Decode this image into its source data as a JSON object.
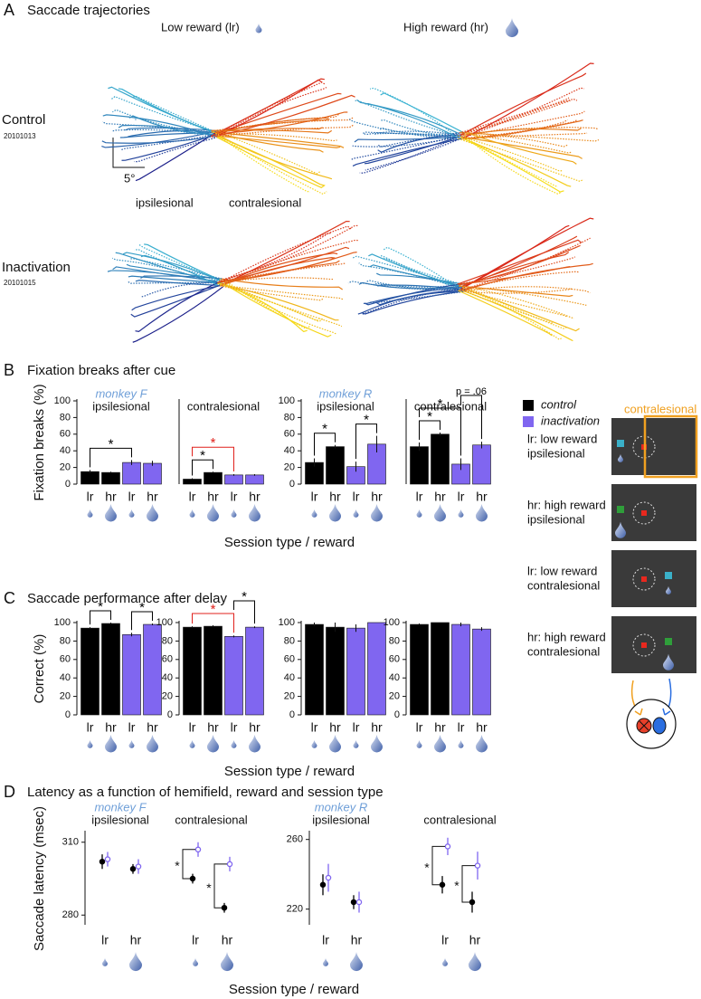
{
  "panel_a": {
    "letter": "A",
    "title": "Saccade trajectories",
    "columns": [
      "Low reward (lr)",
      "High reward (hr)"
    ],
    "rows": [
      {
        "label": "Control",
        "session": "20101013"
      },
      {
        "label": "Inactivation",
        "session": "20101015"
      }
    ],
    "scale": "5°",
    "hemifields": [
      "ipsilesional",
      "contralesional"
    ]
  },
  "panel_b": {
    "letter": "B",
    "title": "Fixation breaks after cue",
    "x_label": "Session type / reward"
  },
  "panel_c": {
    "letter": "C",
    "title": "Saccade performance after delay",
    "x_label": "Session type / reward"
  },
  "panel_d": {
    "letter": "D",
    "title": "Latency as a function of hemifield, reward and session type",
    "x_label": "Session type / reward"
  },
  "legend": [
    {
      "name": "control",
      "color": "#000000"
    },
    {
      "name": "inactivation",
      "color": "#8066f0"
    }
  ],
  "task_schematic": {
    "label": "contralesional",
    "conditions": [
      [
        "lr: low reward",
        "ipsilesional"
      ],
      [
        "hr: high reward",
        "ipsilesional"
      ],
      [
        "lr: low reward",
        "contralesional"
      ],
      [
        "hr: high reward",
        "contralesional"
      ]
    ]
  },
  "chart_data": [
    {
      "type": "bar",
      "subtitle": "monkey F",
      "hemifield": "ipsilesional",
      "y_label": "Fixation breaks (%)",
      "categories": [
        "lr",
        "hr",
        "lr",
        "hr"
      ],
      "values": [
        15,
        14,
        26,
        25
      ],
      "errors": [
        2,
        1,
        3,
        3
      ],
      "colors": [
        "#000000",
        "#000000",
        "#8066f0",
        "#8066f0"
      ],
      "ylim": [
        0,
        100
      ],
      "yticks": [
        0,
        20,
        40,
        60,
        80,
        100
      ],
      "annotations": [
        {
          "text": "*",
          "pair": [
            0,
            2
          ],
          "color": "#000000"
        }
      ]
    },
    {
      "type": "bar",
      "hemifield": "contralesional",
      "categories": [
        "lr",
        "hr",
        "lr",
        "hr"
      ],
      "values": [
        6,
        14,
        11,
        11
      ],
      "errors": [
        1,
        1,
        1,
        1
      ],
      "colors": [
        "#000000",
        "#000000",
        "#8066f0",
        "#8066f0"
      ],
      "ylim": [
        0,
        100
      ],
      "annotations": [
        {
          "text": "*",
          "pair": [
            0,
            1
          ],
          "color": "#000000"
        },
        {
          "text": "*",
          "pair": [
            0,
            2
          ],
          "color": "#e0201b"
        }
      ]
    },
    {
      "type": "bar",
      "subtitle": "monkey R",
      "hemifield": "ipsilesional",
      "categories": [
        "lr",
        "hr",
        "lr",
        "hr"
      ],
      "values": [
        26,
        45,
        21,
        48
      ],
      "errors": [
        5,
        2,
        6,
        10
      ],
      "colors": [
        "#000000",
        "#000000",
        "#8066f0",
        "#8066f0"
      ],
      "ylim": [
        0,
        100
      ],
      "yticks": [
        0,
        20,
        40,
        60,
        80,
        100
      ],
      "annotations": [
        {
          "text": "*",
          "pair": [
            0,
            1
          ],
          "color": "#000000"
        },
        {
          "text": "*",
          "pair": [
            2,
            3
          ],
          "color": "#000000"
        }
      ]
    },
    {
      "type": "bar",
      "hemifield": "contralesional",
      "categories": [
        "lr",
        "hr",
        "lr",
        "hr"
      ],
      "values": [
        45,
        60,
        24,
        47
      ],
      "errors": [
        5,
        2,
        7,
        4
      ],
      "colors": [
        "#000000",
        "#000000",
        "#8066f0",
        "#8066f0"
      ],
      "ylim": [
        0,
        100
      ],
      "annotations": [
        {
          "text": "*",
          "pair": [
            0,
            1
          ],
          "color": "#000000"
        },
        {
          "text": "*",
          "pair": [
            0,
            2
          ],
          "color": "#000000"
        },
        {
          "text": "p = .06",
          "pair": [
            2,
            3
          ],
          "color": "#000000"
        }
      ]
    },
    {
      "type": "bar",
      "y_label": "Correct (%)",
      "categories": [
        "lr",
        "hr",
        "lr",
        "hr"
      ],
      "values": [
        94,
        99,
        87,
        98
      ],
      "errors": [
        1,
        1,
        2,
        1
      ],
      "colors": [
        "#000000",
        "#000000",
        "#8066f0",
        "#8066f0"
      ],
      "ylim": [
        0,
        100
      ],
      "yticks": [
        0,
        20,
        40,
        60,
        80,
        100
      ],
      "annotations": [
        {
          "text": "*",
          "pair": [
            0,
            1
          ],
          "color": "#000000"
        },
        {
          "text": "*",
          "pair": [
            2,
            3
          ],
          "color": "#000000"
        }
      ]
    },
    {
      "type": "bar",
      "categories": [
        "lr",
        "hr",
        "lr",
        "hr"
      ],
      "values": [
        95,
        96,
        85,
        95
      ],
      "errors": [
        1,
        1,
        1,
        1
      ],
      "colors": [
        "#000000",
        "#000000",
        "#8066f0",
        "#8066f0"
      ],
      "ylim": [
        0,
        100
      ],
      "yticks": [
        0,
        20,
        40,
        60,
        80,
        100
      ],
      "annotations": [
        {
          "text": "*",
          "pair": [
            0,
            2
          ],
          "color": "#e0201b"
        },
        {
          "text": "*",
          "pair": [
            2,
            3
          ],
          "color": "#000000"
        }
      ]
    },
    {
      "type": "bar",
      "categories": [
        "lr",
        "hr",
        "lr",
        "hr"
      ],
      "values": [
        98,
        95,
        94,
        100
      ],
      "errors": [
        2,
        5,
        4,
        0
      ],
      "colors": [
        "#000000",
        "#000000",
        "#8066f0",
        "#8066f0"
      ],
      "ylim": [
        0,
        100
      ],
      "yticks": [
        0,
        20,
        40,
        60,
        80,
        100
      ]
    },
    {
      "type": "bar",
      "categories": [
        "lr",
        "hr",
        "lr",
        "hr"
      ],
      "values": [
        98,
        100,
        98,
        93
      ],
      "errors": [
        1,
        0,
        2,
        2
      ],
      "colors": [
        "#000000",
        "#000000",
        "#8066f0",
        "#8066f0"
      ],
      "ylim": [
        0,
        100
      ],
      "yticks": [
        0,
        20,
        40,
        60,
        80,
        100
      ]
    },
    {
      "type": "dot",
      "subtitle": "monkey F",
      "groups": [
        "ipsilesional",
        "contralesional"
      ],
      "y_label": "Saccade latency (msec)",
      "categories": [
        "lr",
        "hr",
        "lr",
        "hr"
      ],
      "series": [
        {
          "color": "#000000",
          "values": [
            302,
            299,
            295,
            283
          ],
          "errors": [
            3,
            2,
            2,
            2
          ]
        },
        {
          "color": "#8066f0",
          "values": [
            303,
            300,
            307,
            301
          ],
          "errors": [
            3,
            3,
            3,
            3
          ]
        }
      ],
      "ylim": [
        276,
        314
      ],
      "yticks": [
        280,
        310
      ],
      "annotations": [
        {
          "text": "*",
          "category": 2
        },
        {
          "text": "*",
          "category": 3
        }
      ]
    },
    {
      "type": "dot",
      "subtitle": "monkey R",
      "groups": [
        "ipsilesional",
        "contralesional"
      ],
      "categories": [
        "lr",
        "hr",
        "lr",
        "hr"
      ],
      "series": [
        {
          "color": "#000000",
          "values": [
            234,
            224,
            234,
            224
          ],
          "errors": [
            6,
            4,
            5,
            6
          ]
        },
        {
          "color": "#8066f0",
          "values": [
            238,
            224,
            256,
            245
          ],
          "errors": [
            8,
            6,
            5,
            8
          ]
        }
      ],
      "ylim": [
        211,
        264
      ],
      "yticks": [
        220,
        260
      ],
      "annotations": [
        {
          "text": "*",
          "category": 2
        },
        {
          "text": "*",
          "category": 3
        }
      ]
    }
  ]
}
